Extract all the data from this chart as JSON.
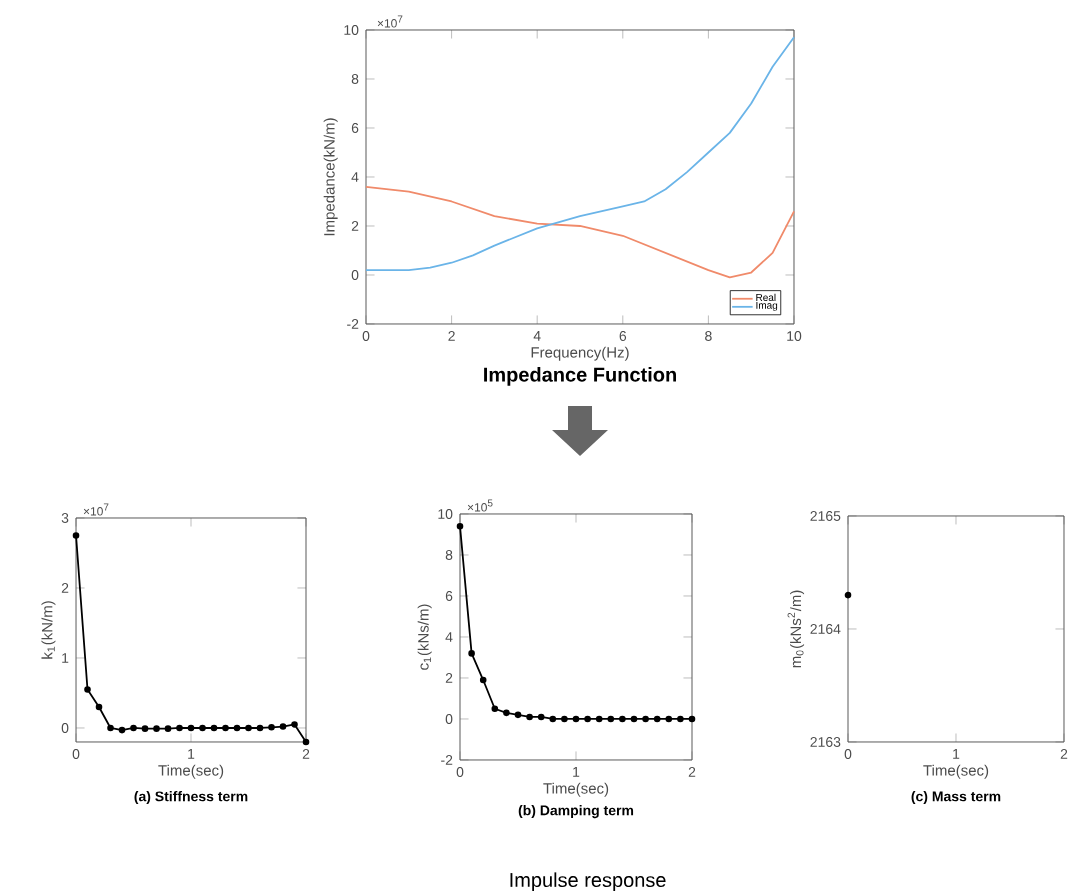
{
  "chart_data": [
    {
      "type": "line",
      "title": "Impedance Function",
      "xlabel": "Frequency(Hz)",
      "ylabel": "Impedance(kN/m)",
      "annotations": [
        "×10$^{7}$"
      ],
      "xlim": [
        0,
        10
      ],
      "ylim": [
        -2,
        10
      ],
      "xticks": [
        0,
        2,
        4,
        6,
        8,
        10
      ],
      "yticks": [
        -2,
        0,
        2,
        4,
        6,
        8,
        10
      ],
      "legend": "bottom right",
      "grid": false,
      "marker": "none",
      "line_style": "solid",
      "series": [
        {
          "name": "Real",
          "color": "#f08a6a",
          "x": [
            0,
            1,
            2,
            3,
            4,
            5,
            6,
            7,
            8,
            8.5,
            9,
            9.5,
            10
          ],
          "values": [
            3.6,
            3.4,
            3.0,
            2.4,
            2.1,
            2.0,
            1.6,
            0.9,
            0.2,
            -0.1,
            0.1,
            0.9,
            2.6
          ]
        },
        {
          "name": "Imag",
          "color": "#6ab4e8",
          "x": [
            0,
            1,
            1.5,
            2,
            2.5,
            3,
            4,
            5,
            6,
            6.5,
            7,
            7.5,
            8,
            8.5,
            9,
            9.5,
            10
          ],
          "values": [
            0.2,
            0.2,
            0.3,
            0.5,
            0.8,
            1.2,
            1.9,
            2.4,
            2.8,
            3.0,
            3.5,
            4.2,
            5.0,
            5.8,
            7.0,
            8.5,
            9.7
          ]
        }
      ]
    },
    {
      "type": "line",
      "title": "(a) Stiffness term",
      "xlabel": "Time(sec)",
      "ylabel": "k$_{1}$(kN/m)",
      "annotations": [
        "×10$^{7}$"
      ],
      "xlim": [
        0,
        2
      ],
      "ylim": [
        -0.2,
        3
      ],
      "xticks": [
        0,
        1,
        2
      ],
      "yticks": [
        0,
        1,
        2,
        3
      ],
      "grid": false,
      "marker": "circle",
      "line_style": "solid",
      "series": [
        {
          "color": "#000000",
          "x": [
            0,
            0.1,
            0.2,
            0.3,
            0.4,
            0.5,
            0.6,
            0.7,
            0.8,
            0.9,
            1.0,
            1.1,
            1.2,
            1.3,
            1.4,
            1.5,
            1.6,
            1.7,
            1.8,
            1.9,
            2.0
          ],
          "values": [
            2.75,
            0.55,
            0.3,
            0.0,
            -0.03,
            0,
            -0.01,
            -0.01,
            -0.01,
            0,
            0,
            0,
            0,
            0,
            0,
            0,
            0,
            0.01,
            0.02,
            0.05,
            -0.2
          ]
        }
      ]
    },
    {
      "type": "line",
      "title": "(b) Damping term",
      "xlabel": "Time(sec)",
      "ylabel": "c$_{1}$(kNs/m)",
      "annotations": [
        "×10$^{5}$",
        "Impulse response"
      ],
      "xlim": [
        0,
        2
      ],
      "ylim": [
        -2,
        10
      ],
      "xticks": [
        0,
        1,
        2
      ],
      "yticks": [
        -2,
        0,
        2,
        4,
        6,
        8,
        10
      ],
      "grid": false,
      "marker": "circle",
      "line_style": "solid",
      "series": [
        {
          "color": "#000000",
          "x": [
            0,
            0.1,
            0.2,
            0.3,
            0.4,
            0.5,
            0.6,
            0.7,
            0.8,
            0.9,
            1.0,
            1.1,
            1.2,
            1.3,
            1.4,
            1.5,
            1.6,
            1.7,
            1.8,
            1.9,
            2.0
          ],
          "values": [
            9.4,
            3.2,
            1.9,
            0.5,
            0.3,
            0.2,
            0.1,
            0.1,
            0,
            0,
            0,
            0,
            0,
            0,
            0,
            0,
            0,
            0,
            0,
            0,
            0
          ]
        }
      ]
    },
    {
      "type": "scatter",
      "title": "(c) Mass term",
      "xlabel": "Time(sec)",
      "ylabel": "m$_{0}$(kNs$^{2}$/m)",
      "xlim": [
        0,
        2
      ],
      "ylim": [
        2163,
        2165
      ],
      "xticks": [
        0,
        1,
        2
      ],
      "yticks": [
        2163,
        2164,
        2165
      ],
      "grid": false,
      "marker": "circle",
      "series": [
        {
          "color": "#000000",
          "x": [
            0
          ],
          "values": [
            2164.3
          ]
        }
      ]
    }
  ]
}
